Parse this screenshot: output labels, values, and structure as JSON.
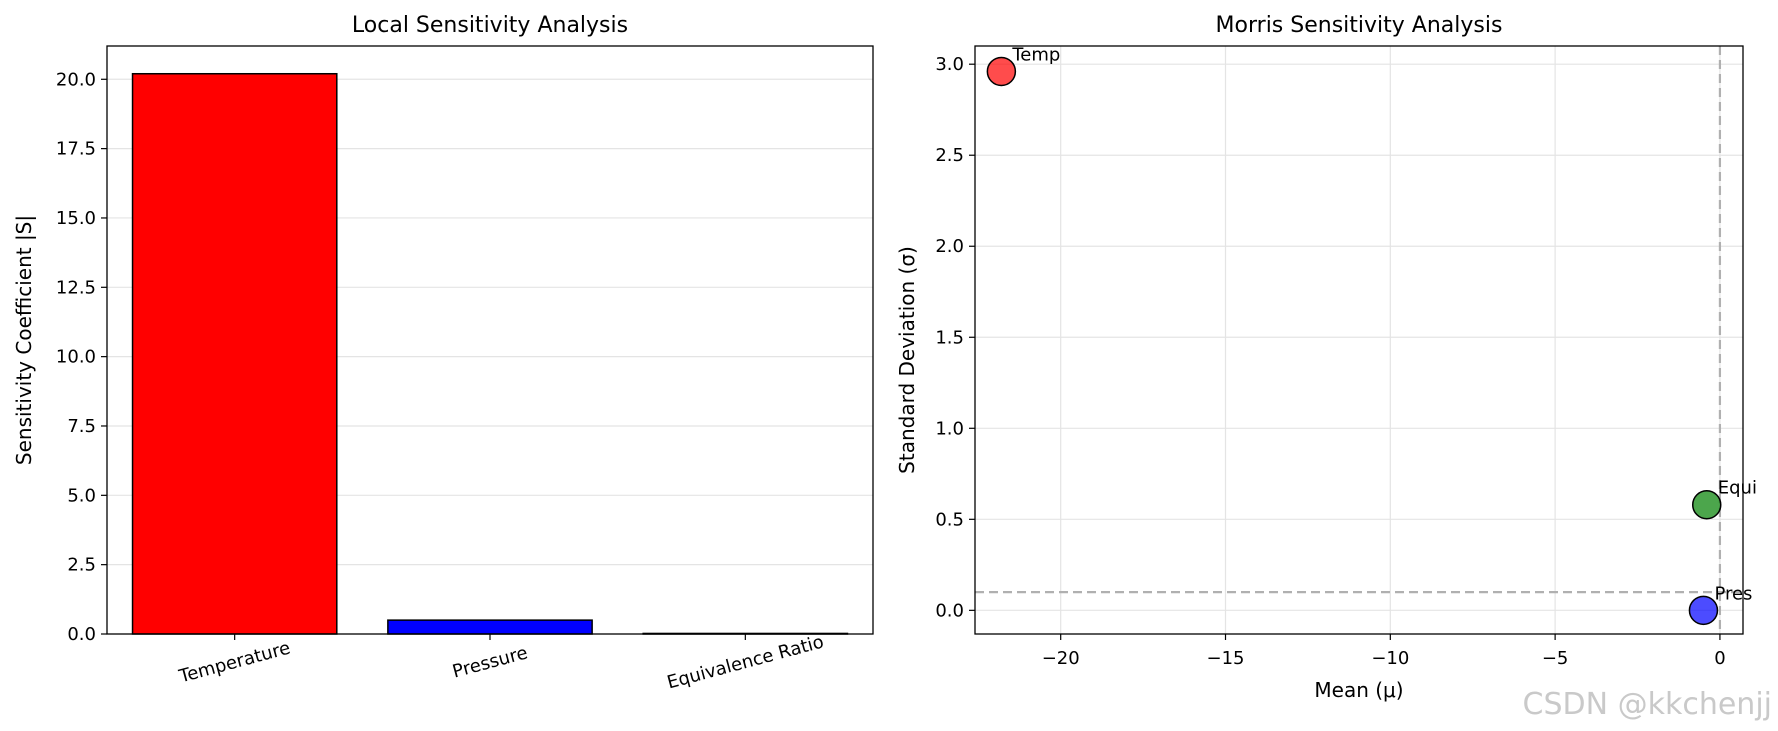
{
  "chart_data": [
    {
      "type": "bar",
      "title": "Local Sensitivity Analysis",
      "xlabel": "",
      "ylabel": "Sensitivity Coefficient |S|",
      "categories": [
        "Temperature",
        "Pressure",
        "Equivalence Ratio"
      ],
      "values": [
        20.2,
        0.5,
        0.02
      ],
      "colors": [
        "#ff0000",
        "#0000ff",
        "#008000"
      ],
      "ylim": [
        0,
        21.2
      ],
      "yticks": [
        0.0,
        2.5,
        5.0,
        7.5,
        10.0,
        12.5,
        15.0,
        17.5,
        20.0
      ],
      "ytick_labels": [
        "0.0",
        "2.5",
        "5.0",
        "7.5",
        "10.0",
        "12.5",
        "15.0",
        "17.5",
        "20.0"
      ],
      "grid": "y"
    },
    {
      "type": "scatter",
      "title": "Morris Sensitivity Analysis",
      "xlabel": "Mean (μ)",
      "ylabel": "Standard Deviation (σ)",
      "xlim": [
        -22.6,
        0.7
      ],
      "ylim": [
        -0.13,
        3.1
      ],
      "xticks": [
        -20,
        -15,
        -10,
        -5,
        0
      ],
      "xtick_labels": [
        "−20",
        "−15",
        "−10",
        "−5",
        "0"
      ],
      "yticks": [
        0.0,
        0.5,
        1.0,
        1.5,
        2.0,
        2.5,
        3.0
      ],
      "ytick_labels": [
        "0.0",
        "0.5",
        "1.0",
        "1.5",
        "2.0",
        "2.5",
        "3.0"
      ],
      "points": [
        {
          "label": "Temp",
          "x": -21.8,
          "y": 2.96,
          "color": "#ff0000"
        },
        {
          "label": "Equi",
          "x": -0.4,
          "y": 0.58,
          "color": "#008000"
        },
        {
          "label": "Pres",
          "x": -0.5,
          "y": 0.0,
          "color": "#0000ff"
        }
      ],
      "reference_lines": {
        "vertical_x": 0,
        "horizontal_y": 0.1
      },
      "grid": "both"
    }
  ],
  "watermark": "CSDN @kkchenjj"
}
